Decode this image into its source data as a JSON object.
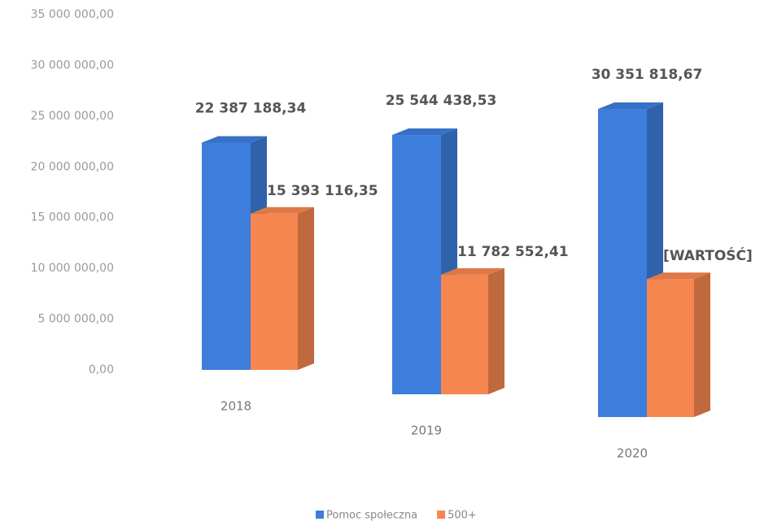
{
  "chart_data": {
    "type": "bar3d",
    "categories": [
      "2018",
      "2019",
      "2020"
    ],
    "series": [
      {
        "name": "Pomoc społeczna",
        "color": "#3d7ddc",
        "values": [
          22387188.34,
          25544438.53,
          30351818.67
        ],
        "value_labels": [
          "22 387 188,34",
          "25 544 438,53",
          "30 351 818,67"
        ]
      },
      {
        "name": "500+",
        "color": "#f6864f",
        "values": [
          15393116.35,
          11782552.41,
          13600000
        ],
        "value_labels": [
          "15 393 116,35",
          "11 782 552,41",
          "[WARTOŚĆ]"
        ]
      }
    ],
    "ylim": [
      0,
      35000000
    ],
    "yticks": [
      {
        "value": 0,
        "label": "0,00"
      },
      {
        "value": 5000000,
        "label": "5 000 000,00"
      },
      {
        "value": 10000000,
        "label": "10 000 000,00"
      },
      {
        "value": 15000000,
        "label": "15 000 000,00"
      },
      {
        "value": 20000000,
        "label": "20 000 000,00"
      },
      {
        "value": 25000000,
        "label": "25 000 000,00"
      },
      {
        "value": 30000000,
        "label": "30 000 000,00"
      },
      {
        "value": 35000000,
        "label": "35 000 000,00"
      }
    ],
    "legend": "bottom"
  }
}
